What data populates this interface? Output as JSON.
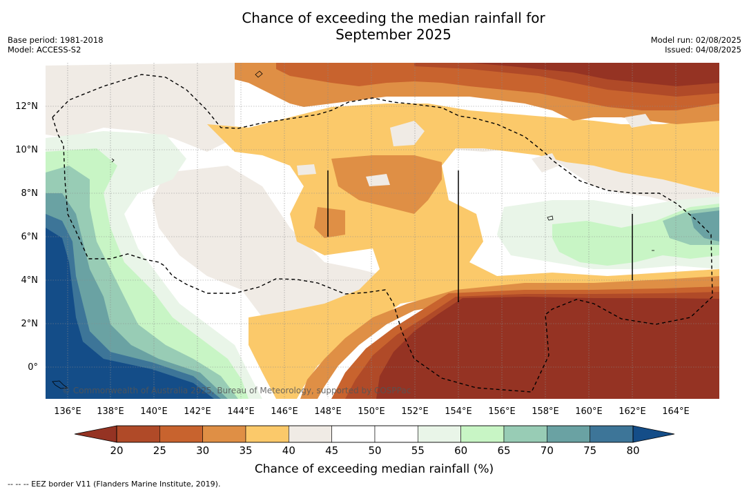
{
  "header": {
    "title_line1": "Chance of exceeding the median rainfall for",
    "title_line2": "September 2025",
    "base_period": "Base period: 1981-2018",
    "model": "Model: ACCESS-S2",
    "model_run": "Model run: 02/08/2025",
    "issued": "Issued: 04/08/2025"
  },
  "map": {
    "lon_labels": [
      "136°E",
      "138°E",
      "140°E",
      "142°E",
      "144°E",
      "146°E",
      "148°E",
      "150°E",
      "152°E",
      "154°E",
      "156°E",
      "158°E",
      "160°E",
      "162°E",
      "164°E"
    ],
    "lat_labels": [
      "12°N",
      "10°N",
      "8°N",
      "6°N",
      "4°N",
      "2°N",
      "0°"
    ],
    "credit": "© Commonwealth of Australia 2025, Bureau of Meteorology, supported by COSPPac"
  },
  "colorbar": {
    "ticks": [
      "20",
      "25",
      "30",
      "35",
      "40",
      "45",
      "50",
      "55",
      "60",
      "65",
      "70",
      "75",
      "80"
    ],
    "label": "Chance of exceeding median rainfall (%)",
    "colors": [
      "#b04a28",
      "#c8632e",
      "#df8f45",
      "#fbc96a",
      "#f0ebe5",
      "#ffffff",
      "#ffffff",
      "#e9f5e8",
      "#c8f5c5",
      "#98ccb5",
      "#6aa2a3",
      "#3d7598"
    ],
    "under_color": "#953323",
    "over_color": "#144d88"
  },
  "footnote": "--  --  -- EEZ border V11 (Flanders Marine Institute, 2019)."
}
